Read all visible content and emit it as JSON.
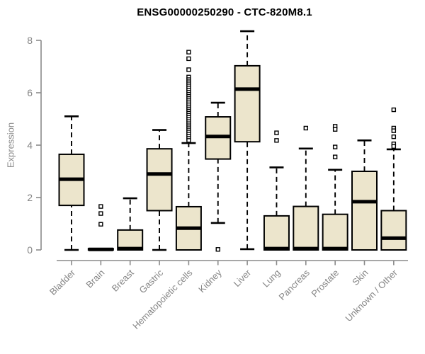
{
  "title": "ENSG00000250290 - CTC-820M8.1",
  "colors": {
    "box_fill": "#ece5cc",
    "box_stroke": "#000000",
    "median": "#000000",
    "whisker": "#000000",
    "outlier_fill": "#ffffff",
    "outlier_stroke": "#000000",
    "axis_line": "#8a8a8a",
    "tick_label": "#858585",
    "title_color": "#000000"
  },
  "chart_data": {
    "type": "boxplot",
    "title": "ENSG00000250290 - CTC-820M8.1",
    "xlabel": "",
    "ylabel": "Expression",
    "ylim": [
      0,
      8
    ],
    "yticks": [
      0,
      2,
      4,
      6,
      8
    ],
    "grid": false,
    "legend": "none",
    "categories": [
      "Bladder",
      "Brain",
      "Breast",
      "Gastric",
      "Hematopoietic cells",
      "Kidney",
      "Liver",
      "Lung",
      "Pancreas",
      "Prostate",
      "Skin",
      "Unknown / Other"
    ],
    "boxes": [
      {
        "name": "Bladder",
        "min": 0,
        "q1": 1.7,
        "median": 2.7,
        "q3": 3.65,
        "max": 5.1,
        "outliers": []
      },
      {
        "name": "Brain",
        "min": 0,
        "q1": 0,
        "median": 0.02,
        "q3": 0.05,
        "max": 0.05,
        "outliers": [
          1.66,
          1.39,
          0.98
        ]
      },
      {
        "name": "Breast",
        "min": 0,
        "q1": 0,
        "median": 0.05,
        "q3": 0.76,
        "max": 1.97,
        "outliers": []
      },
      {
        "name": "Gastric",
        "min": 0,
        "q1": 1.5,
        "median": 2.9,
        "q3": 3.86,
        "max": 4.58,
        "outliers": []
      },
      {
        "name": "Hematopoietic cells",
        "min": 0,
        "q1": 0,
        "median": 0.83,
        "q3": 1.65,
        "max": 4.08,
        "outliers": [
          7.55,
          7.3,
          6.88,
          6.6,
          6.5,
          6.42,
          6.34,
          6.26,
          6.18,
          6.1,
          6.02,
          5.94,
          5.86,
          5.78,
          5.7,
          5.62,
          5.54,
          5.46,
          5.38,
          5.3,
          5.22,
          5.14,
          5.06,
          4.98,
          4.9,
          4.82,
          4.74,
          4.66,
          4.58,
          4.5,
          4.42,
          4.34,
          4.26,
          4.18
        ]
      },
      {
        "name": "Kidney",
        "min": 1.03,
        "q1": 3.47,
        "median": 4.33,
        "q3": 5.08,
        "max": 5.62,
        "outliers": [
          0.02
        ]
      },
      {
        "name": "Liver",
        "min": 0.03,
        "q1": 4.13,
        "median": 6.14,
        "q3": 7.03,
        "max": 8.35,
        "outliers": []
      },
      {
        "name": "Lung",
        "min": 0,
        "q1": 0,
        "median": 0.05,
        "q3": 1.3,
        "max": 3.15,
        "outliers": [
          4.47,
          4.18
        ]
      },
      {
        "name": "Pancreas",
        "min": 0,
        "q1": 0,
        "median": 0.05,
        "q3": 1.66,
        "max": 3.87,
        "outliers": [
          4.65
        ]
      },
      {
        "name": "Prostate",
        "min": 0,
        "q1": 0,
        "median": 0.05,
        "q3": 1.36,
        "max": 3.06,
        "outliers": [
          4.72,
          4.6,
          3.93,
          3.55
        ]
      },
      {
        "name": "Skin",
        "min": 0,
        "q1": 0,
        "median": 1.84,
        "q3": 3.0,
        "max": 4.18,
        "outliers": []
      },
      {
        "name": "Unknown / Other",
        "min": 0,
        "q1": 0,
        "median": 0.45,
        "q3": 1.5,
        "max": 3.84,
        "outliers": [
          5.35,
          4.65,
          4.55,
          4.32,
          4.05,
          3.95
        ]
      }
    ]
  }
}
